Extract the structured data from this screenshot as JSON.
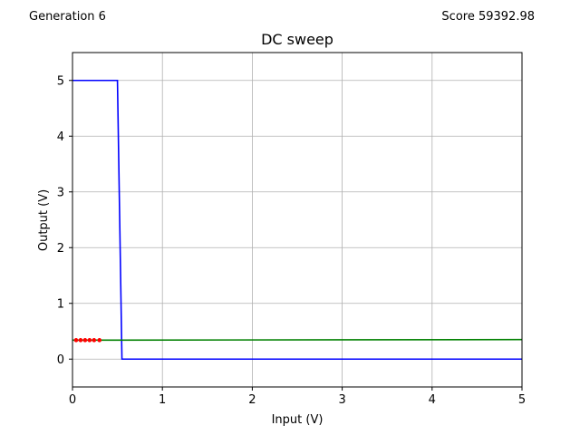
{
  "header": {
    "generation": "Generation 6",
    "score": "Score 59392.98"
  },
  "chart_data": {
    "type": "line",
    "title": "DC sweep",
    "xlabel": "Input (V)",
    "ylabel": "Output (V)",
    "xlim": [
      0,
      5
    ],
    "ylim": [
      -0.5,
      5.5
    ],
    "xticks": [
      0,
      1,
      2,
      3,
      4,
      5
    ],
    "yticks": [
      0,
      1,
      2,
      3,
      4,
      5
    ],
    "grid": true,
    "series": [
      {
        "color": "#0000ff",
        "style": "line",
        "x": [
          0,
          0.5,
          0.55,
          5
        ],
        "y": [
          5,
          5,
          0,
          0
        ]
      },
      {
        "color": "#008000",
        "style": "line",
        "x": [
          0,
          5
        ],
        "y": [
          0.34,
          0.35
        ]
      },
      {
        "color": "#ff0000",
        "style": "markers",
        "x": [
          0.04,
          0.09,
          0.14,
          0.19,
          0.24,
          0.3
        ],
        "y": [
          0.34,
          0.34,
          0.34,
          0.34,
          0.34,
          0.34
        ]
      }
    ]
  }
}
